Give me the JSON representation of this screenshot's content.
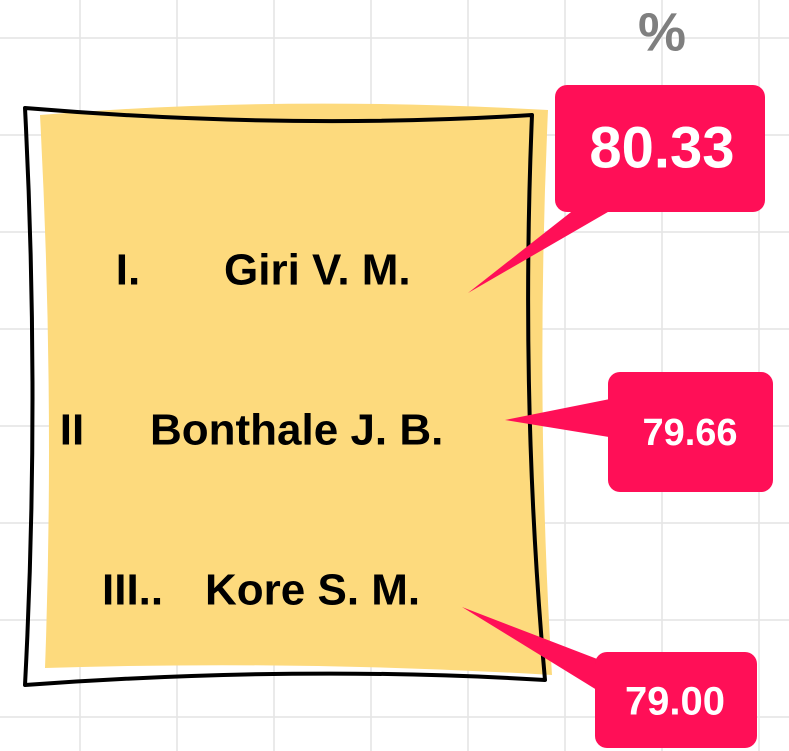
{
  "header": {
    "unit": "%"
  },
  "items": [
    {
      "rank": "I.",
      "name": "Giri V. M.",
      "score": "80.33"
    },
    {
      "rank": "II",
      "name": "Bonthale J. B.",
      "score": "79.66"
    },
    {
      "rank": "III..",
      "name": "Kore S. M.",
      "score": "79.00"
    }
  ]
}
